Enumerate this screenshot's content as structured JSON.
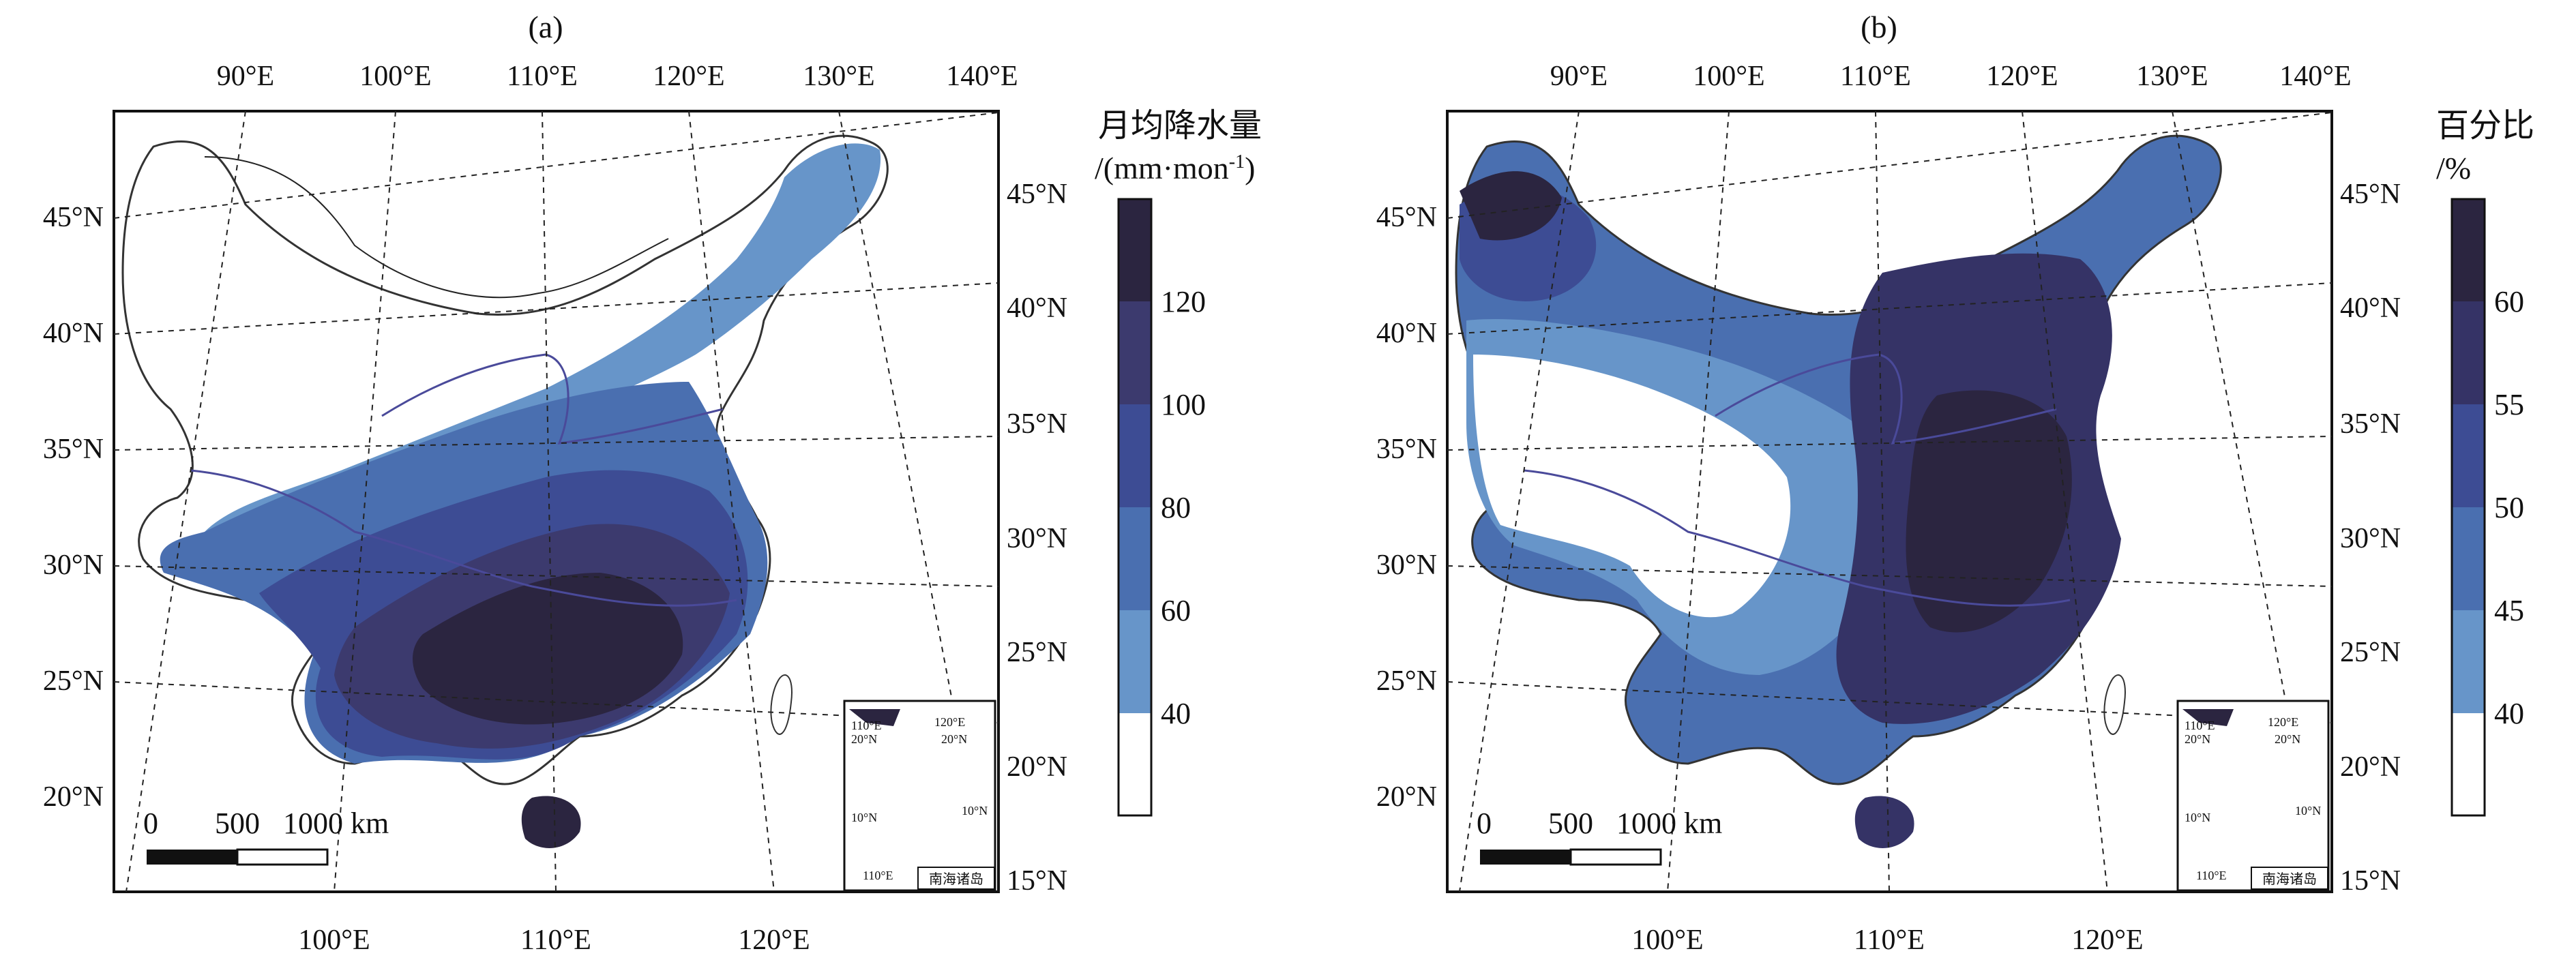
{
  "panels": [
    {
      "label": "(a)",
      "top_lon_ticks": [
        "90°E",
        "100°E",
        "110°E",
        "120°E",
        "130°E",
        "140°E"
      ],
      "bottom_lon_ticks": [
        "100°E",
        "110°E",
        "120°E"
      ],
      "left_lat_ticks": [
        "45°N",
        "40°N",
        "35°N",
        "30°N",
        "25°N",
        "20°N"
      ],
      "right_lat_ticks": [
        "45°N",
        "40°N",
        "35°N",
        "30°N",
        "25°N",
        "20°N",
        "15°N"
      ],
      "scale_bar": {
        "zero": "0",
        "mid": "500",
        "end": "1000 km"
      },
      "inset": {
        "lon_labels": [
          "110°E",
          "120°E",
          "110°E"
        ],
        "lat_labels": [
          "20°N",
          "20°N",
          "10°N",
          "10°N"
        ],
        "caption": "南海诸岛"
      },
      "legend": {
        "title_line1": "月均降水量",
        "title_line2": "/(mm·mon",
        "title_sup": "-1",
        "title_end": ")",
        "tick_labels": [
          "120",
          "100",
          "80",
          "60",
          "40"
        ],
        "colors": [
          "#2b2540",
          "#3c3a6e",
          "#3d4c94",
          "#4a6fb0",
          "#6795c9",
          "#ffffff"
        ]
      }
    },
    {
      "label": "(b)",
      "top_lon_ticks": [
        "90°E",
        "100°E",
        "110°E",
        "120°E",
        "130°E",
        "140°E"
      ],
      "bottom_lon_ticks": [
        "100°E",
        "110°E",
        "120°E"
      ],
      "left_lat_ticks": [
        "45°N",
        "40°N",
        "35°N",
        "30°N",
        "25°N",
        "20°N"
      ],
      "right_lat_ticks": [
        "45°N",
        "40°N",
        "35°N",
        "30°N",
        "25°N",
        "20°N",
        "15°N"
      ],
      "scale_bar": {
        "zero": "0",
        "mid": "500",
        "end": "1000 km"
      },
      "inset": {
        "lon_labels": [
          "110°E",
          "120°E",
          "110°E"
        ],
        "lat_labels": [
          "20°N",
          "20°N",
          "10°N",
          "10°N"
        ],
        "caption": "南海诸岛"
      },
      "legend": {
        "title_line1": "百分比",
        "title_line2": "/%",
        "title_sup": "",
        "title_end": "",
        "tick_labels": [
          "60",
          "55",
          "50",
          "45",
          "40"
        ],
        "colors": [
          "#2b2540",
          "#353366",
          "#3d4c94",
          "#4a6fb0",
          "#6795c9",
          "#ffffff"
        ]
      }
    }
  ]
}
